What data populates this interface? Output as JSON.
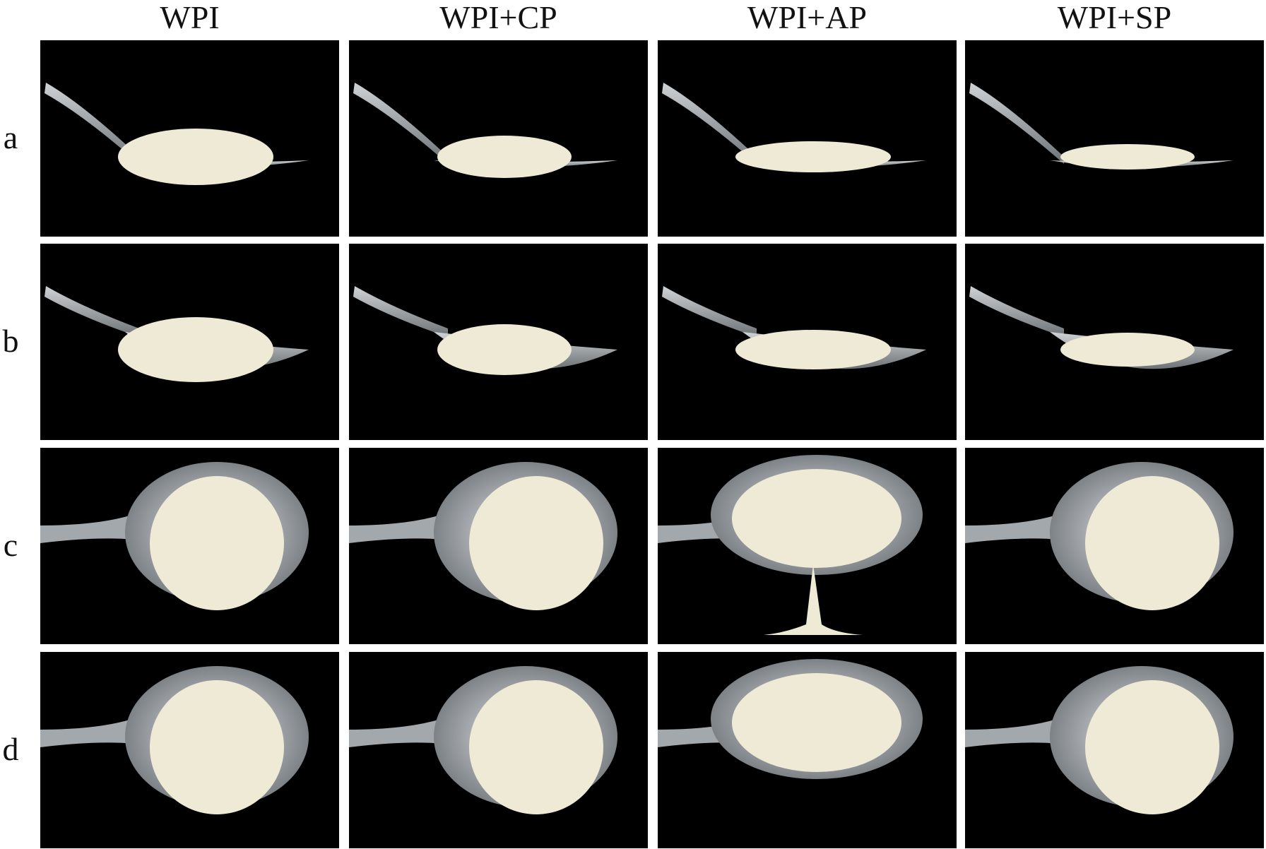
{
  "figure": {
    "columns": [
      "WPI",
      "WPI+CP",
      "WPI+AP",
      "WPI+SP"
    ],
    "rows": [
      "a",
      "b",
      "c",
      "d"
    ],
    "panel_background": "#000000",
    "sample_color": "#efead6",
    "spoon_color": "#9aa0a6"
  }
}
